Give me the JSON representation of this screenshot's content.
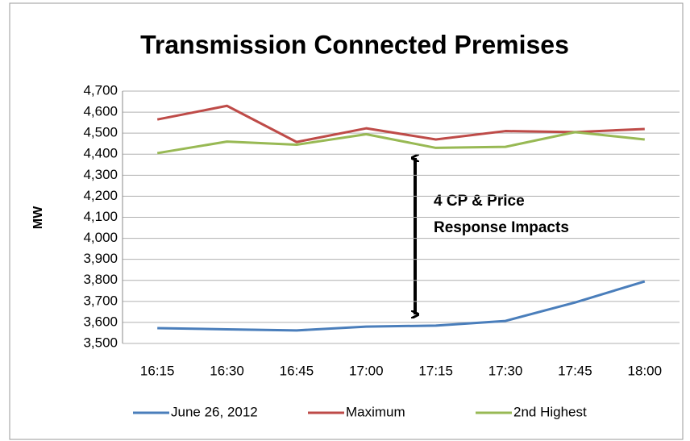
{
  "chart_data": {
    "type": "line",
    "title": "Transmission Connected Premises",
    "y_label": "MW",
    "categories": [
      "16:15",
      "16:30",
      "16:45",
      "17:00",
      "17:15",
      "17:30",
      "17:45",
      "18:00"
    ],
    "series": [
      {
        "name": "June 26, 2012",
        "color": "#4a7ebb",
        "values": [
          3573,
          3567,
          3562,
          3580,
          3585,
          3607,
          3695,
          3795
        ]
      },
      {
        "name": "Maximum",
        "color": "#be4b48",
        "values": [
          4565,
          4630,
          4458,
          4523,
          4470,
          4510,
          4505,
          4520
        ]
      },
      {
        "name": "2nd Highest",
        "color": "#98b954",
        "values": [
          4405,
          4460,
          4445,
          4495,
          4430,
          4435,
          4505,
          4470
        ]
      }
    ],
    "ylim": [
      3500,
      4700
    ],
    "yticks": [
      {
        "value": 3500,
        "label": "3,500"
      },
      {
        "value": 3600,
        "label": "3,600"
      },
      {
        "value": 3700,
        "label": "3,700"
      },
      {
        "value": 3800,
        "label": "3,800"
      },
      {
        "value": 3900,
        "label": "3,900"
      },
      {
        "value": 4000,
        "label": "4,000"
      },
      {
        "value": 4100,
        "label": "4,100"
      },
      {
        "value": 4200,
        "label": "4,200"
      },
      {
        "value": 4300,
        "label": "4,300"
      },
      {
        "value": 4400,
        "label": "4,400"
      },
      {
        "value": 4500,
        "label": "4,500"
      },
      {
        "value": 4600,
        "label": "4,600"
      },
      {
        "value": 4700,
        "label": "4,700"
      }
    ],
    "grid": true,
    "legend": "bottom",
    "annotation": [
      "4 CP & Price",
      "Response Impacts"
    ]
  }
}
